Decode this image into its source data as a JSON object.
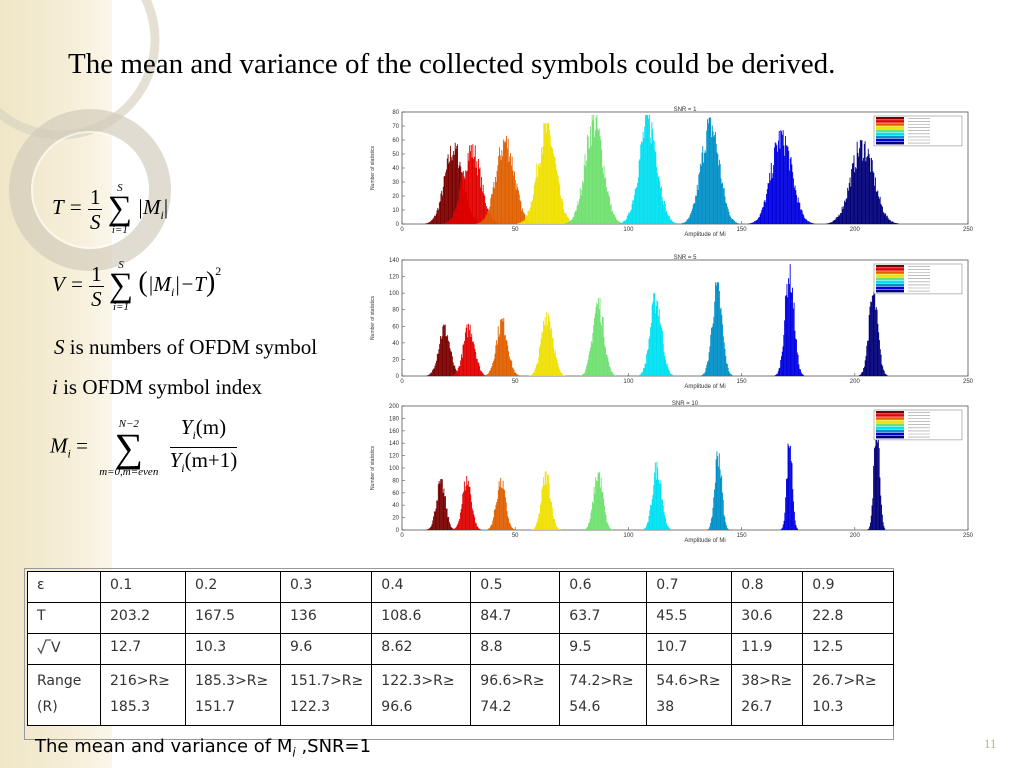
{
  "slide": {
    "title": "The mean and variance of the collected symbols could be derived.",
    "page_number": "11",
    "caption_prefix": "The mean  and variance of M",
    "caption_sub": "i",
    "caption_suffix": " ,SNR=1"
  },
  "equations": {
    "T_lhs": "T =",
    "V_lhs": "V =",
    "M_lhs": "M",
    "M_sub": "i",
    "equals": "=",
    "one": "1",
    "S": "S",
    "sum_upper": "S",
    "sum_lower": "i=1",
    "abs_M": "|M",
    "abs_close": "|",
    "sub_i": "i",
    "V_body_close": "|−T",
    "square": "2",
    "M_sum_upper": "N−2",
    "M_sum_lower": "m=0,m=even",
    "M_num": "Y",
    "M_num_arg": "(m)",
    "M_den_arg": "(m+1)"
  },
  "notes": {
    "s_var": "S",
    "s_text": " is numbers of OFDM symbol",
    "i_var": "i",
    "i_text": " is OFDM symbol index"
  },
  "colors": {
    "series": [
      "#7a0000",
      "#e00000",
      "#e06000",
      "#f0e000",
      "#70e070",
      "#00e0f0",
      "#0090c8",
      "#0000e0",
      "#00007a"
    ]
  },
  "chart_data": [
    {
      "type": "histogram",
      "title": "SNR = 1",
      "xlabel": "Amplitude of Mi",
      "ylabel": "Number of statistics",
      "xlim": [
        0,
        250
      ],
      "ylim": [
        0,
        80
      ],
      "xticks": [
        "0",
        "50",
        "100",
        "150",
        "200",
        "250"
      ],
      "yticks": [
        "0",
        "10",
        "20",
        "30",
        "40",
        "50",
        "60",
        "70",
        "80"
      ],
      "legend": "top-right",
      "grid": false,
      "peaks": [
        {
          "center": 22.8,
          "height": 58,
          "width": 4
        },
        {
          "center": 30.6,
          "height": 57,
          "width": 4
        },
        {
          "center": 45.5,
          "height": 63,
          "width": 4
        },
        {
          "center": 63.7,
          "height": 72,
          "width": 4
        },
        {
          "center": 84.7,
          "height": 78,
          "width": 4
        },
        {
          "center": 108.6,
          "height": 78,
          "width": 4
        },
        {
          "center": 136,
          "height": 76,
          "width": 4
        },
        {
          "center": 167.5,
          "height": 67,
          "width": 4.5
        },
        {
          "center": 203.2,
          "height": 60,
          "width": 5
        }
      ]
    },
    {
      "type": "histogram",
      "title": "SNR = 5",
      "xlabel": "Amplitude of Mi",
      "ylabel": "Number of statistics",
      "xlim": [
        0,
        250
      ],
      "ylim": [
        0,
        140
      ],
      "xticks": [
        "0",
        "50",
        "100",
        "150",
        "200",
        "250"
      ],
      "yticks": [
        "0",
        "20",
        "40",
        "60",
        "80",
        "100",
        "120",
        "140"
      ],
      "legend": "top-right",
      "grid": false,
      "peaks": [
        {
          "center": 18.5,
          "height": 62,
          "width": 2.5
        },
        {
          "center": 29.5,
          "height": 63,
          "width": 2.5
        },
        {
          "center": 44,
          "height": 70,
          "width": 2.5
        },
        {
          "center": 64,
          "height": 82,
          "width": 2.5
        },
        {
          "center": 86.5,
          "height": 94,
          "width": 2.5
        },
        {
          "center": 112,
          "height": 100,
          "width": 2.5
        },
        {
          "center": 139,
          "height": 113,
          "width": 2.2
        },
        {
          "center": 171,
          "height": 135,
          "width": 2
        },
        {
          "center": 208,
          "height": 104,
          "width": 2
        }
      ]
    },
    {
      "type": "histogram",
      "title": "SNR = 10",
      "xlabel": "Amplitude of Mi",
      "ylabel": "Number of statistics",
      "xlim": [
        0,
        250
      ],
      "ylim": [
        0,
        200
      ],
      "xticks": [
        "0",
        "50",
        "100",
        "150",
        "200",
        "250"
      ],
      "yticks": [
        "0",
        "20",
        "40",
        "60",
        "80",
        "100",
        "120",
        "140",
        "160",
        "180",
        "200"
      ],
      "legend": "top-right",
      "grid": false,
      "peaks": [
        {
          "center": 17,
          "height": 82,
          "width": 2
        },
        {
          "center": 28.5,
          "height": 87,
          "width": 2
        },
        {
          "center": 43.5,
          "height": 84,
          "width": 2
        },
        {
          "center": 63.5,
          "height": 95,
          "width": 2
        },
        {
          "center": 86.5,
          "height": 98,
          "width": 2
        },
        {
          "center": 112.5,
          "height": 110,
          "width": 2
        },
        {
          "center": 139.5,
          "height": 135,
          "width": 1.5
        },
        {
          "center": 171,
          "height": 155,
          "width": 1.2
        },
        {
          "center": 209.5,
          "height": 188,
          "width": 1.2
        }
      ]
    }
  ],
  "table": {
    "header": [
      "ε",
      "0.1",
      "0.2",
      "0.3",
      "0.4",
      "0.5",
      "0.6",
      "0.7",
      "0.8",
      "0.9"
    ],
    "T": [
      "T",
      "203.2",
      "167.5",
      "136",
      "108.6",
      "84.7",
      "63.7",
      "45.5",
      "30.6",
      "22.8"
    ],
    "sqrtV_label": "V",
    "sqrtV": [
      "12.7",
      "10.3",
      "9.6",
      "8.62",
      "8.8",
      "9.5",
      "10.7",
      "11.9",
      "12.5"
    ],
    "range_label_1": "Range",
    "range_label_2": "(R)",
    "range_top": [
      "216>R≥",
      "185.3>R≥",
      "151.7>R≥",
      "122.3>R≥",
      "96.6>R≥",
      "74.2>R≥",
      "54.6>R≥",
      "38>R≥",
      "26.7>R≥"
    ],
    "range_bottom": [
      "185.3",
      "151.7",
      "122.3",
      "96.6",
      "74.2",
      "54.6",
      "38",
      "26.7",
      "10.3"
    ]
  }
}
